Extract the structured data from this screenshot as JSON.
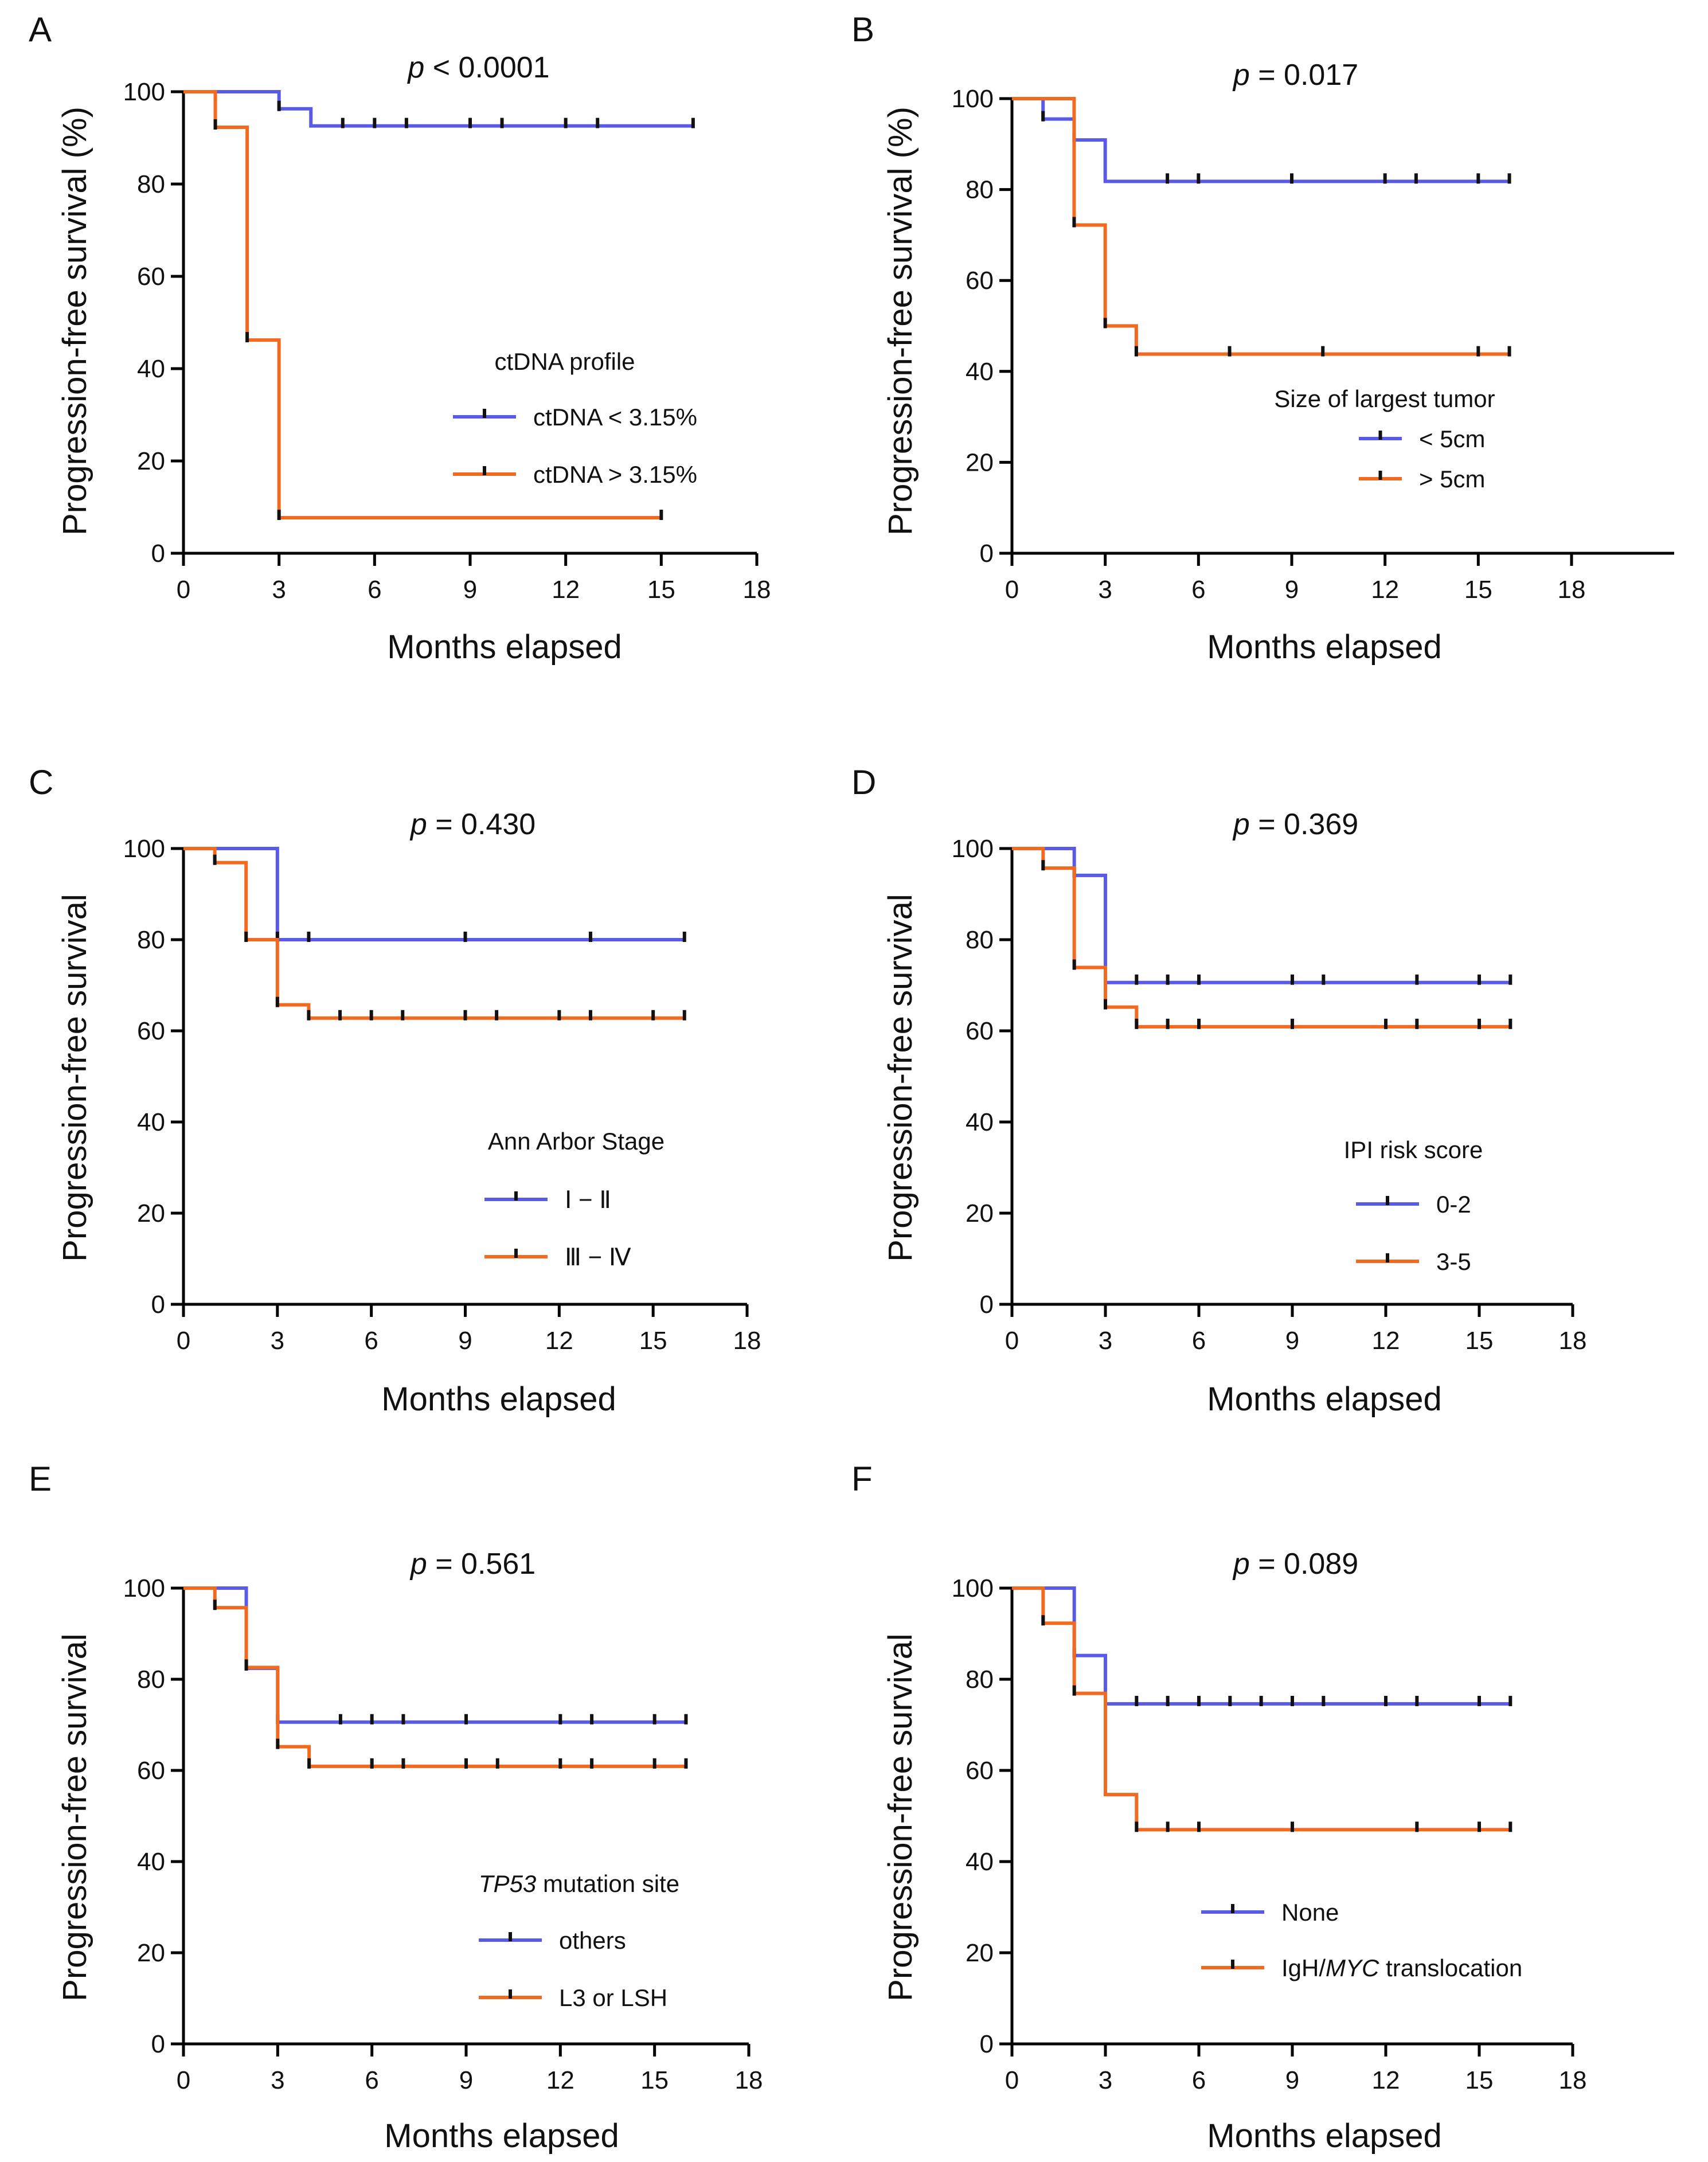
{
  "colors": {
    "blue": "#5A5AE8",
    "orange": "#F26A1F",
    "axis": "#000000"
  },
  "chart_data": [
    {
      "type": "line",
      "letter": "A",
      "p_prefix": "p",
      "p_rest": " < 0.0001",
      "title": "",
      "xlabel": "Months elapsed",
      "ylabel": "Progression-free survival (%)",
      "xlim": [
        0,
        18
      ],
      "ylim": [
        0,
        100
      ],
      "xticks": [
        "0",
        "3",
        "6",
        "9",
        "12",
        "15",
        "18"
      ],
      "yticks": [
        "0",
        "20",
        "40",
        "60",
        "80",
        "100"
      ],
      "legend": {
        "title_italic": "",
        "title": "ctDNA profile",
        "position": "center-right"
      },
      "series": [
        {
          "name": "ctDNA < 3.15%",
          "name_pre": "ctDNA < 3.15%",
          "name_italic": "",
          "name_post": "",
          "color": "blue",
          "steps": [
            [
              0,
              100
            ],
            [
              3,
              96.3
            ],
            [
              4,
              92.6
            ],
            [
              16,
              92.6
            ]
          ],
          "censor": [
            [
              3,
              96.3
            ],
            [
              5,
              92.6
            ],
            [
              6,
              92.6
            ],
            [
              7,
              92.6
            ],
            [
              9,
              92.6
            ],
            [
              10,
              92.6
            ],
            [
              12,
              92.6
            ],
            [
              13,
              92.6
            ],
            [
              16,
              92.6
            ]
          ]
        },
        {
          "name": "ctDNA > 3.15%",
          "name_pre": "ctDNA > 3.15%",
          "name_italic": "",
          "name_post": "",
          "color": "orange",
          "steps": [
            [
              0,
              100
            ],
            [
              1,
              92.3
            ],
            [
              2,
              46.2
            ],
            [
              3,
              7.7
            ],
            [
              15,
              7.7
            ]
          ],
          "censor": [
            [
              1,
              92.3
            ],
            [
              2,
              46.2
            ],
            [
              3,
              7.7
            ],
            [
              15,
              7.7
            ]
          ]
        }
      ]
    },
    {
      "type": "line",
      "letter": "B",
      "p_prefix": "p",
      "p_rest": " = 0.017",
      "title": "",
      "xlabel": "Months elapsed",
      "ylabel": "Progression-free survival (%)",
      "xlim": [
        0,
        21
      ],
      "ylim": [
        0,
        100
      ],
      "xticks": [
        "0",
        "3",
        "6",
        "9",
        "12",
        "15",
        "18"
      ],
      "yticks": [
        "0",
        "20",
        "40",
        "60",
        "80",
        "100"
      ],
      "legend": {
        "title_italic": "",
        "title": "Size of largest tumor",
        "position": "center-right"
      },
      "series": [
        {
          "name": "< 5cm",
          "name_pre": "< 5cm",
          "name_italic": "",
          "name_post": "",
          "color": "blue",
          "steps": [
            [
              0,
              100
            ],
            [
              1,
              95.5
            ],
            [
              2,
              90.9
            ],
            [
              3,
              81.8
            ],
            [
              16,
              81.8
            ]
          ],
          "censor": [
            [
              1,
              95.5
            ],
            [
              2,
              90.9
            ],
            [
              5,
              81.8
            ],
            [
              6,
              81.8
            ],
            [
              9,
              81.8
            ],
            [
              12,
              81.8
            ],
            [
              13,
              81.8
            ],
            [
              15,
              81.8
            ],
            [
              16,
              81.8
            ]
          ]
        },
        {
          "name": "> 5cm",
          "name_pre": "> 5cm",
          "name_italic": "",
          "name_post": "",
          "color": "orange",
          "steps": [
            [
              0,
              100
            ],
            [
              2,
              72.2
            ],
            [
              3,
              50
            ],
            [
              4,
              43.8
            ],
            [
              16,
              43.8
            ]
          ],
          "censor": [
            [
              2,
              72.2
            ],
            [
              3,
              50
            ],
            [
              4,
              43.8
            ],
            [
              7,
              43.8
            ],
            [
              10,
              43.8
            ],
            [
              15,
              43.8
            ],
            [
              16,
              43.8
            ]
          ]
        }
      ]
    },
    {
      "type": "line",
      "letter": "C",
      "p_prefix": "p",
      "p_rest": " = 0.430",
      "title": "",
      "xlabel": "Months elapsed",
      "ylabel": "Progression-free survival",
      "xlim": [
        0,
        18
      ],
      "ylim": [
        0,
        100
      ],
      "xticks": [
        "0",
        "3",
        "6",
        "9",
        "12",
        "15",
        "18"
      ],
      "yticks": [
        "0",
        "20",
        "40",
        "60",
        "80",
        "100"
      ],
      "legend": {
        "title_italic": "",
        "title": "Ann Arbor Stage",
        "position": "center-right"
      },
      "series": [
        {
          "name": "Ⅰ − Ⅱ",
          "name_pre": "Ⅰ − Ⅱ",
          "name_italic": "",
          "name_post": "",
          "color": "blue",
          "steps": [
            [
              0,
              100
            ],
            [
              3,
              80
            ],
            [
              16,
              80
            ]
          ],
          "censor": [
            [
              3,
              80
            ],
            [
              4,
              80
            ],
            [
              9,
              80
            ],
            [
              13,
              80
            ],
            [
              16,
              80
            ]
          ]
        },
        {
          "name": "Ⅲ − Ⅳ",
          "name_pre": "Ⅲ − Ⅳ",
          "name_italic": "",
          "name_post": "",
          "color": "orange",
          "steps": [
            [
              0,
              100
            ],
            [
              1,
              96.9
            ],
            [
              2,
              80
            ],
            [
              3,
              65.7
            ],
            [
              4,
              62.8
            ],
            [
              16,
              62.8
            ]
          ],
          "censor": [
            [
              1,
              96.9
            ],
            [
              2,
              80
            ],
            [
              3,
              65.7
            ],
            [
              4,
              62.8
            ],
            [
              5,
              62.8
            ],
            [
              6,
              62.8
            ],
            [
              7,
              62.8
            ],
            [
              9,
              62.8
            ],
            [
              10,
              62.8
            ],
            [
              12,
              62.8
            ],
            [
              13,
              62.8
            ],
            [
              15,
              62.8
            ],
            [
              16,
              62.8
            ]
          ]
        }
      ]
    },
    {
      "type": "line",
      "letter": "D",
      "p_prefix": "p",
      "p_rest": " = 0.369",
      "title": "",
      "xlabel": "Months elapsed",
      "ylabel": "Progression-free survival",
      "xlim": [
        0,
        18
      ],
      "ylim": [
        0,
        100
      ],
      "xticks": [
        "0",
        "3",
        "6",
        "9",
        "12",
        "15",
        "18"
      ],
      "yticks": [
        "0",
        "20",
        "40",
        "60",
        "80",
        "100"
      ],
      "legend": {
        "title_italic": "",
        "title": "IPI risk score",
        "position": "center-right"
      },
      "series": [
        {
          "name": "0-2",
          "name_pre": "0-2",
          "name_italic": "",
          "name_post": "",
          "color": "blue",
          "steps": [
            [
              0,
              100
            ],
            [
              2,
              94.1
            ],
            [
              3,
              70.6
            ],
            [
              16,
              70.6
            ]
          ],
          "censor": [
            [
              2,
              94.1
            ],
            [
              4,
              70.6
            ],
            [
              5,
              70.6
            ],
            [
              6,
              70.6
            ],
            [
              9,
              70.6
            ],
            [
              10,
              70.6
            ],
            [
              13,
              70.6
            ],
            [
              15,
              70.6
            ],
            [
              16,
              70.6
            ]
          ]
        },
        {
          "name": "3-5",
          "name_pre": "3-5",
          "name_italic": "",
          "name_post": "",
          "color": "orange",
          "steps": [
            [
              0,
              100
            ],
            [
              1,
              95.7
            ],
            [
              2,
              73.9
            ],
            [
              3,
              65.2
            ],
            [
              4,
              60.9
            ],
            [
              16,
              60.9
            ]
          ],
          "censor": [
            [
              1,
              95.7
            ],
            [
              2,
              73.9
            ],
            [
              3,
              65.2
            ],
            [
              4,
              60.9
            ],
            [
              5,
              60.9
            ],
            [
              6,
              60.9
            ],
            [
              9,
              60.9
            ],
            [
              12,
              60.9
            ],
            [
              13,
              60.9
            ],
            [
              15,
              60.9
            ],
            [
              16,
              60.9
            ]
          ]
        }
      ]
    },
    {
      "type": "line",
      "letter": "E",
      "p_prefix": "p",
      "p_rest": " = 0.561",
      "title": "",
      "xlabel": "Months elapsed",
      "ylabel": "Progression-free survival",
      "xlim": [
        0,
        18
      ],
      "ylim": [
        0,
        100
      ],
      "xticks": [
        "0",
        "3",
        "6",
        "9",
        "12",
        "15",
        "18"
      ],
      "yticks": [
        "0",
        "20",
        "40",
        "60",
        "80",
        "100"
      ],
      "legend": {
        "title_italic": "TP53",
        "title": " mutation site",
        "position": "center-right"
      },
      "series": [
        {
          "name": "others",
          "name_pre": "others",
          "name_italic": "",
          "name_post": "",
          "color": "blue",
          "steps": [
            [
              0,
              100
            ],
            [
              2,
              82.4
            ],
            [
              3,
              70.6
            ],
            [
              16,
              70.6
            ]
          ],
          "censor": [
            [
              2,
              82.4
            ],
            [
              3,
              70.6
            ],
            [
              5,
              70.6
            ],
            [
              6,
              70.6
            ],
            [
              7,
              70.6
            ],
            [
              9,
              70.6
            ],
            [
              12,
              70.6
            ],
            [
              13,
              70.6
            ],
            [
              15,
              70.6
            ],
            [
              16,
              70.6
            ]
          ]
        },
        {
          "name": "L3 or LSH",
          "name_pre": "L3 or LSH",
          "name_italic": "",
          "name_post": "",
          "color": "orange",
          "steps": [
            [
              0,
              100
            ],
            [
              1,
              95.7
            ],
            [
              2,
              82.6
            ],
            [
              3,
              65.2
            ],
            [
              4,
              60.9
            ],
            [
              16,
              60.9
            ]
          ],
          "censor": [
            [
              1,
              95.7
            ],
            [
              2,
              82.6
            ],
            [
              3,
              65.2
            ],
            [
              4,
              60.9
            ],
            [
              6,
              60.9
            ],
            [
              7,
              60.9
            ],
            [
              9,
              60.9
            ],
            [
              10,
              60.9
            ],
            [
              12,
              60.9
            ],
            [
              13,
              60.9
            ],
            [
              15,
              60.9
            ],
            [
              16,
              60.9
            ]
          ]
        }
      ]
    },
    {
      "type": "line",
      "letter": "F",
      "p_prefix": "p",
      "p_rest": " = 0.089",
      "title": "",
      "xlabel": "Months elapsed",
      "ylabel": "Progression-free survival",
      "xlim": [
        0,
        18
      ],
      "ylim": [
        0,
        100
      ],
      "xticks": [
        "0",
        "3",
        "6",
        "9",
        "12",
        "15",
        "18"
      ],
      "yticks": [
        "0",
        "20",
        "40",
        "60",
        "80",
        "100"
      ],
      "legend": {
        "title_italic": "",
        "title": "",
        "position": "bottom-right"
      },
      "series": [
        {
          "name": "None",
          "name_pre": "None",
          "name_italic": "",
          "name_post": "",
          "color": "blue",
          "steps": [
            [
              0,
              100
            ],
            [
              2,
              85.2
            ],
            [
              3,
              74.6
            ],
            [
              16,
              74.6
            ]
          ],
          "censor": [
            [
              2,
              85.2
            ],
            [
              4,
              74.6
            ],
            [
              5,
              74.6
            ],
            [
              6,
              74.6
            ],
            [
              7,
              74.6
            ],
            [
              8,
              74.6
            ],
            [
              9,
              74.6
            ],
            [
              10,
              74.6
            ],
            [
              12,
              74.6
            ],
            [
              13,
              74.6
            ],
            [
              15,
              74.6
            ],
            [
              16,
              74.6
            ]
          ]
        },
        {
          "name": "IgH/MYC translocation",
          "name_pre": "IgH/",
          "name_italic": "MYC",
          "name_post": " translocation",
          "color": "orange",
          "steps": [
            [
              0,
              100
            ],
            [
              1,
              92.3
            ],
            [
              2,
              76.9
            ],
            [
              3,
              54.7
            ],
            [
              4,
              47
            ],
            [
              16,
              47
            ]
          ],
          "censor": [
            [
              1,
              92.3
            ],
            [
              2,
              76.9
            ],
            [
              4,
              47
            ],
            [
              5,
              47
            ],
            [
              6,
              47
            ],
            [
              9,
              47
            ],
            [
              13,
              47
            ],
            [
              15,
              47
            ],
            [
              16,
              47
            ]
          ]
        }
      ]
    }
  ]
}
